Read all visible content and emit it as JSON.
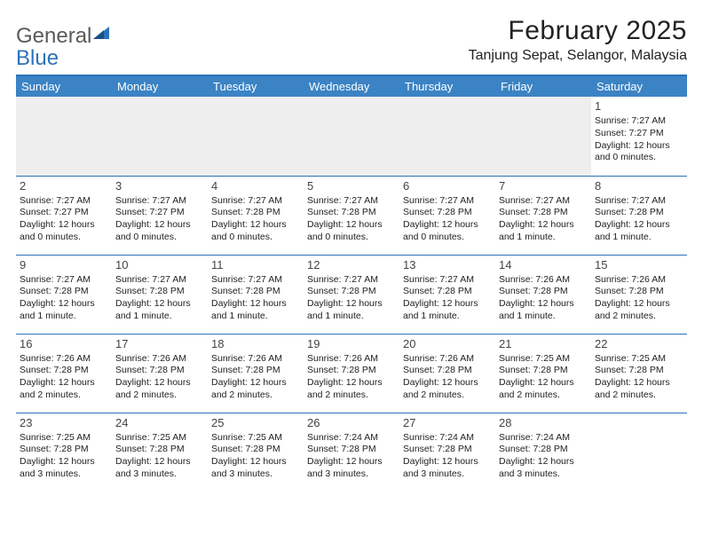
{
  "logo": {
    "text1": "General",
    "text2": "Blue"
  },
  "header": {
    "month_title": "February 2025",
    "location": "Tanjung Sepat, Selangor, Malaysia"
  },
  "colors": {
    "header_bg": "#3b83c4",
    "rule": "#2d72b8",
    "empty_bg": "#eeeeee",
    "text": "#222222",
    "logo_gray": "#5a5a5a",
    "logo_blue": "#2d72b8"
  },
  "days": [
    "Sunday",
    "Monday",
    "Tuesday",
    "Wednesday",
    "Thursday",
    "Friday",
    "Saturday"
  ],
  "weeks": [
    [
      null,
      null,
      null,
      null,
      null,
      null,
      {
        "n": "1",
        "sunrise": "Sunrise: 7:27 AM",
        "sunset": "Sunset: 7:27 PM",
        "day1": "Daylight: 12 hours",
        "day2": "and 0 minutes."
      }
    ],
    [
      {
        "n": "2",
        "sunrise": "Sunrise: 7:27 AM",
        "sunset": "Sunset: 7:27 PM",
        "day1": "Daylight: 12 hours",
        "day2": "and 0 minutes."
      },
      {
        "n": "3",
        "sunrise": "Sunrise: 7:27 AM",
        "sunset": "Sunset: 7:27 PM",
        "day1": "Daylight: 12 hours",
        "day2": "and 0 minutes."
      },
      {
        "n": "4",
        "sunrise": "Sunrise: 7:27 AM",
        "sunset": "Sunset: 7:28 PM",
        "day1": "Daylight: 12 hours",
        "day2": "and 0 minutes."
      },
      {
        "n": "5",
        "sunrise": "Sunrise: 7:27 AM",
        "sunset": "Sunset: 7:28 PM",
        "day1": "Daylight: 12 hours",
        "day2": "and 0 minutes."
      },
      {
        "n": "6",
        "sunrise": "Sunrise: 7:27 AM",
        "sunset": "Sunset: 7:28 PM",
        "day1": "Daylight: 12 hours",
        "day2": "and 0 minutes."
      },
      {
        "n": "7",
        "sunrise": "Sunrise: 7:27 AM",
        "sunset": "Sunset: 7:28 PM",
        "day1": "Daylight: 12 hours",
        "day2": "and 1 minute."
      },
      {
        "n": "8",
        "sunrise": "Sunrise: 7:27 AM",
        "sunset": "Sunset: 7:28 PM",
        "day1": "Daylight: 12 hours",
        "day2": "and 1 minute."
      }
    ],
    [
      {
        "n": "9",
        "sunrise": "Sunrise: 7:27 AM",
        "sunset": "Sunset: 7:28 PM",
        "day1": "Daylight: 12 hours",
        "day2": "and 1 minute."
      },
      {
        "n": "10",
        "sunrise": "Sunrise: 7:27 AM",
        "sunset": "Sunset: 7:28 PM",
        "day1": "Daylight: 12 hours",
        "day2": "and 1 minute."
      },
      {
        "n": "11",
        "sunrise": "Sunrise: 7:27 AM",
        "sunset": "Sunset: 7:28 PM",
        "day1": "Daylight: 12 hours",
        "day2": "and 1 minute."
      },
      {
        "n": "12",
        "sunrise": "Sunrise: 7:27 AM",
        "sunset": "Sunset: 7:28 PM",
        "day1": "Daylight: 12 hours",
        "day2": "and 1 minute."
      },
      {
        "n": "13",
        "sunrise": "Sunrise: 7:27 AM",
        "sunset": "Sunset: 7:28 PM",
        "day1": "Daylight: 12 hours",
        "day2": "and 1 minute."
      },
      {
        "n": "14",
        "sunrise": "Sunrise: 7:26 AM",
        "sunset": "Sunset: 7:28 PM",
        "day1": "Daylight: 12 hours",
        "day2": "and 1 minute."
      },
      {
        "n": "15",
        "sunrise": "Sunrise: 7:26 AM",
        "sunset": "Sunset: 7:28 PM",
        "day1": "Daylight: 12 hours",
        "day2": "and 2 minutes."
      }
    ],
    [
      {
        "n": "16",
        "sunrise": "Sunrise: 7:26 AM",
        "sunset": "Sunset: 7:28 PM",
        "day1": "Daylight: 12 hours",
        "day2": "and 2 minutes."
      },
      {
        "n": "17",
        "sunrise": "Sunrise: 7:26 AM",
        "sunset": "Sunset: 7:28 PM",
        "day1": "Daylight: 12 hours",
        "day2": "and 2 minutes."
      },
      {
        "n": "18",
        "sunrise": "Sunrise: 7:26 AM",
        "sunset": "Sunset: 7:28 PM",
        "day1": "Daylight: 12 hours",
        "day2": "and 2 minutes."
      },
      {
        "n": "19",
        "sunrise": "Sunrise: 7:26 AM",
        "sunset": "Sunset: 7:28 PM",
        "day1": "Daylight: 12 hours",
        "day2": "and 2 minutes."
      },
      {
        "n": "20",
        "sunrise": "Sunrise: 7:26 AM",
        "sunset": "Sunset: 7:28 PM",
        "day1": "Daylight: 12 hours",
        "day2": "and 2 minutes."
      },
      {
        "n": "21",
        "sunrise": "Sunrise: 7:25 AM",
        "sunset": "Sunset: 7:28 PM",
        "day1": "Daylight: 12 hours",
        "day2": "and 2 minutes."
      },
      {
        "n": "22",
        "sunrise": "Sunrise: 7:25 AM",
        "sunset": "Sunset: 7:28 PM",
        "day1": "Daylight: 12 hours",
        "day2": "and 2 minutes."
      }
    ],
    [
      {
        "n": "23",
        "sunrise": "Sunrise: 7:25 AM",
        "sunset": "Sunset: 7:28 PM",
        "day1": "Daylight: 12 hours",
        "day2": "and 3 minutes."
      },
      {
        "n": "24",
        "sunrise": "Sunrise: 7:25 AM",
        "sunset": "Sunset: 7:28 PM",
        "day1": "Daylight: 12 hours",
        "day2": "and 3 minutes."
      },
      {
        "n": "25",
        "sunrise": "Sunrise: 7:25 AM",
        "sunset": "Sunset: 7:28 PM",
        "day1": "Daylight: 12 hours",
        "day2": "and 3 minutes."
      },
      {
        "n": "26",
        "sunrise": "Sunrise: 7:24 AM",
        "sunset": "Sunset: 7:28 PM",
        "day1": "Daylight: 12 hours",
        "day2": "and 3 minutes."
      },
      {
        "n": "27",
        "sunrise": "Sunrise: 7:24 AM",
        "sunset": "Sunset: 7:28 PM",
        "day1": "Daylight: 12 hours",
        "day2": "and 3 minutes."
      },
      {
        "n": "28",
        "sunrise": "Sunrise: 7:24 AM",
        "sunset": "Sunset: 7:28 PM",
        "day1": "Daylight: 12 hours",
        "day2": "and 3 minutes."
      },
      null
    ]
  ]
}
